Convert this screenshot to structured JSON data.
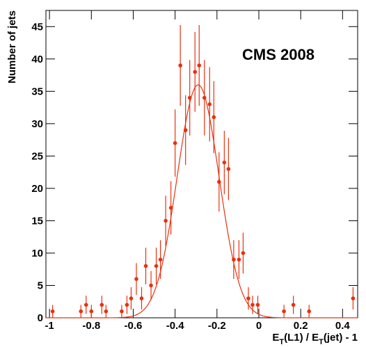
{
  "chart_data": {
    "type": "scatter",
    "annotation": "CMS 2008",
    "ylabel": "Number of jets",
    "xlabel": [
      "E",
      "T",
      "(L1) / E",
      "T",
      "(jet) - 1"
    ],
    "xlim": [
      -1.017,
      0.472
    ],
    "ylim": [
      0,
      47.5
    ],
    "xticks": [
      -1,
      -0.8,
      -0.6,
      -0.4,
      -0.2,
      0,
      0.2,
      0.4
    ],
    "yticks": [
      0,
      5,
      10,
      15,
      20,
      25,
      30,
      35,
      40,
      45
    ],
    "color": "#e8300f",
    "x": [
      -0.985,
      -0.85,
      -0.825,
      -0.8,
      -0.75,
      -0.73,
      -0.655,
      -0.63,
      -0.61,
      -0.585,
      -0.56,
      -0.54,
      -0.515,
      -0.49,
      -0.47,
      -0.445,
      -0.42,
      -0.4,
      -0.375,
      -0.35,
      -0.33,
      -0.305,
      -0.285,
      -0.26,
      -0.235,
      -0.215,
      -0.19,
      -0.165,
      -0.145,
      -0.12,
      -0.095,
      -0.075,
      -0.05,
      -0.03,
      -0.005,
      0.12,
      0.165,
      0.24,
      0.45
    ],
    "values": [
      1,
      1,
      2,
      1,
      2,
      1,
      1,
      2,
      3,
      6,
      3,
      8,
      5,
      8,
      9,
      15,
      17,
      27,
      39,
      29,
      34,
      38,
      39,
      34,
      33,
      31,
      21,
      24,
      23,
      9,
      9,
      10,
      3,
      2,
      2,
      1,
      2,
      1,
      3
    ],
    "errors": [
      1,
      1,
      1.41,
      1,
      1.41,
      1,
      1,
      1.41,
      1.73,
      2.45,
      1.73,
      2.83,
      2.24,
      2.83,
      3,
      3.87,
      4.12,
      5.2,
      6.24,
      5.39,
      5.83,
      6.16,
      6.24,
      5.83,
      5.74,
      5.57,
      4.58,
      4.9,
      4.8,
      3,
      3,
      3.16,
      1.73,
      1.41,
      1.41,
      1,
      1.41,
      1,
      1.73
    ],
    "fit": {
      "amplitude": 36,
      "mean": -0.29,
      "sigma": 0.1
    }
  }
}
